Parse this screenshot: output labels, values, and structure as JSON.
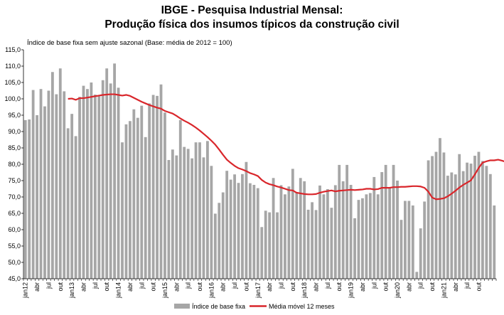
{
  "chart_data": {
    "type": "bar+line",
    "title": "IBGE - Pesquisa Industrial Mensal:",
    "subtitle": "Produção física dos insumos típicos da construção civil",
    "ylabel": "Índice de base fixa sem ajuste sazonal (Base: média de 2012 = 100)",
    "ylim": [
      45,
      115
    ],
    "yticks": [
      "45,0",
      "50,0",
      "55,0",
      "60,0",
      "65,0",
      "70,0",
      "75,0",
      "80,0",
      "85,0",
      "90,0",
      "95,0",
      "100,0",
      "105,0",
      "110,0",
      "115,0"
    ],
    "grid": false,
    "legend_position": "bottom",
    "x_tick_labels": [
      "jan12",
      "abr",
      "jul",
      "out",
      "jan13",
      "abr",
      "jul",
      "out",
      "jan14",
      "abr",
      "jul",
      "out",
      "jan15",
      "abr",
      "jul",
      "out",
      "jan16",
      "abr",
      "jul",
      "out",
      "jan17",
      "abr",
      "jul",
      "out",
      "jan18",
      "abr",
      "jul",
      "out",
      "jan19",
      "abr",
      "jul",
      "out",
      "jan20",
      "abr",
      "jul",
      "out",
      "jan21",
      "abr",
      "jul",
      "out"
    ],
    "series": [
      {
        "name": "Índice de base fixa",
        "type": "bar",
        "color": "#a6a6a6",
        "values": [
          93.5,
          93.7,
          102.7,
          95,
          103,
          97.7,
          102.5,
          108.2,
          101.4,
          109.3,
          102.3,
          91,
          95.4,
          88.6,
          100.6,
          104,
          103,
          105,
          101.3,
          100.8,
          105.7,
          109.3,
          104.7,
          110.8,
          103.4,
          86.7,
          92.2,
          93.2,
          96.8,
          94.2,
          97.9,
          88.3,
          98.6,
          101.2,
          100.9,
          104.4,
          95.8,
          81.3,
          84.5,
          82.7,
          93.5,
          85.3,
          84.7,
          81.8,
          86.7,
          86.7,
          82.1,
          87.1,
          79.5,
          64.9,
          68.2,
          71.4,
          78,
          75.3,
          76.9,
          74.3,
          77,
          80.7,
          74.2,
          73.7,
          72.7,
          60.8,
          65.8,
          65.3,
          75.8,
          65.3,
          73.6,
          70.8,
          73.2,
          78.6,
          71.5,
          75.8,
          74.8,
          66.1,
          68.4,
          66,
          73.5,
          70.8,
          72.4,
          66.7,
          73.6,
          79.8,
          74.8,
          79.8,
          73.7,
          63.5,
          69.1,
          69.6,
          70.8,
          71.2,
          76.1,
          70.8,
          77.6,
          79.8,
          72.7,
          79.8,
          75,
          63,
          68.8,
          68.8,
          67.4,
          47.1,
          60.4,
          68.6,
          81.2,
          82.5,
          83.8,
          88,
          83.6,
          76.5,
          77.5,
          76.9,
          83.1,
          77.9,
          80.5,
          80.2,
          82.6,
          83.8,
          81,
          79.5,
          77,
          67.4
        ]
      },
      {
        "name": "Média móvel 12 meses",
        "type": "line",
        "color": "#d9262b",
        "values": [
          null,
          null,
          null,
          null,
          null,
          null,
          null,
          null,
          null,
          null,
          null,
          100,
          100.1,
          99.7,
          100.2,
          100.2,
          100.4,
          100.6,
          100.8,
          101,
          101.2,
          101.3,
          101.4,
          101.4,
          101.2,
          101,
          101.2,
          100.9,
          100.3,
          99.7,
          99.1,
          98.6,
          98.1,
          97.7,
          97.3,
          97,
          96.3,
          95.9,
          95.5,
          94.8,
          94,
          93.3,
          92.7,
          92,
          91.2,
          90.3,
          89.3,
          88.3,
          87.2,
          86,
          84.5,
          82.9,
          81.4,
          80.4,
          79.5,
          78.8,
          78.4,
          77.9,
          77.3,
          76.9,
          76.4,
          75.2,
          74.4,
          73.9,
          73.6,
          73.2,
          72.9,
          72.5,
          72.1,
          72,
          71.3,
          71.1,
          70.9,
          70.8,
          70.8,
          70.9,
          71.3,
          71.6,
          71.8,
          72,
          71.7,
          71.9,
          72,
          72.1,
          72.2,
          72.1,
          72.2,
          72.3,
          72.5,
          72.5,
          72.3,
          72.4,
          72.8,
          72.8,
          72.8,
          73,
          73,
          73.1,
          73.1,
          73.2,
          73.3,
          73.3,
          73.2,
          72.8,
          71.6,
          69.8,
          69.3,
          69.4,
          69.6,
          70.2,
          71,
          71.9,
          72.9,
          73.7,
          74.4,
          75.1,
          76.9,
          78.9,
          80.5,
          80.9,
          81.2,
          81.2,
          81.4,
          81.1,
          80.7,
          80.4,
          79.6,
          79
        ]
      }
    ]
  }
}
